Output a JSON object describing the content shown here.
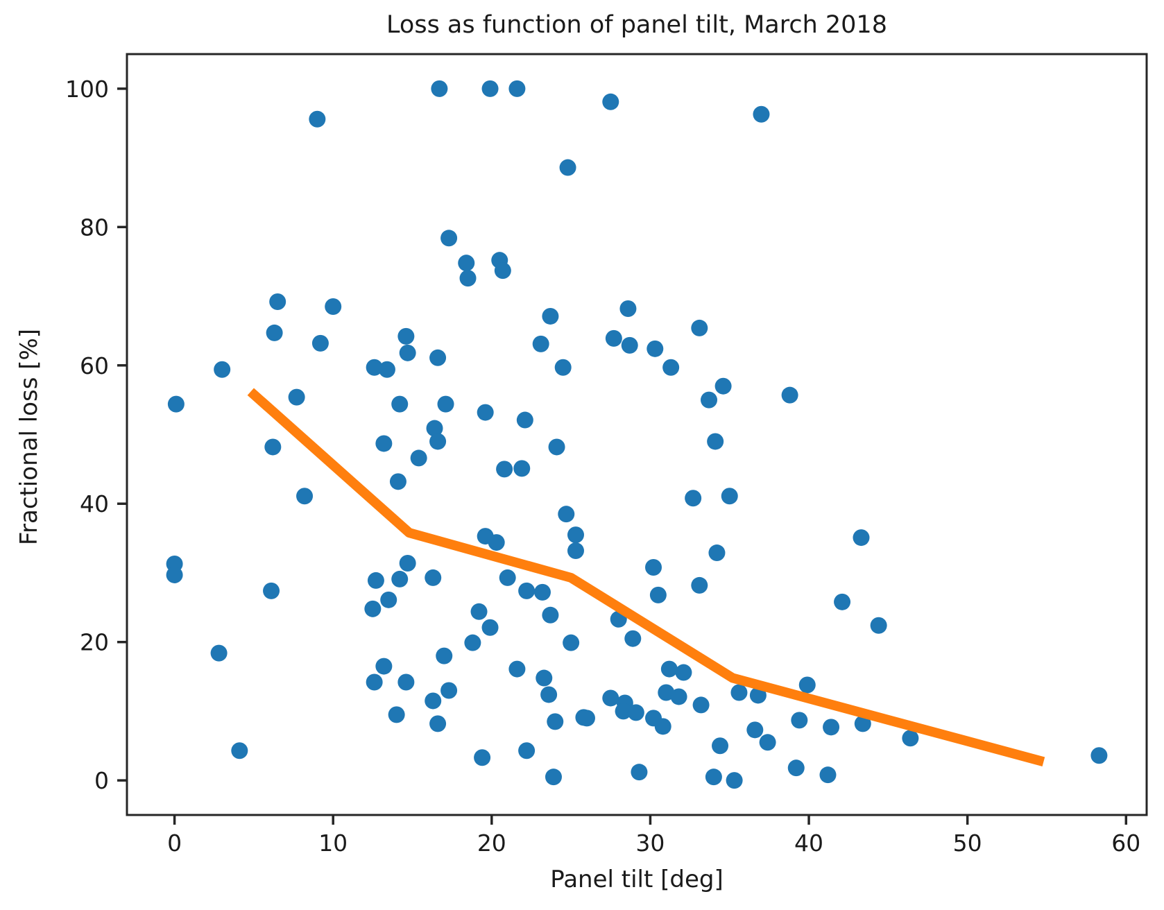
{
  "chart_data": {
    "type": "scatter",
    "title": "Loss as function of panel tilt, March 2018",
    "xlabel": "Panel tilt [deg]",
    "ylabel": "Fractional loss [%]",
    "xlim": [
      -3.0,
      61.3
    ],
    "ylim": [
      -5,
      105
    ],
    "xticks": [
      0,
      10,
      20,
      30,
      40,
      50,
      60
    ],
    "yticks": [
      0,
      20,
      40,
      60,
      80,
      100
    ],
    "grid": false,
    "legend": "none",
    "background_color": "#ffffff",
    "spine_color": "#262626",
    "series": [
      {
        "name": "loss-samples",
        "type": "scatter",
        "color": "#1f77b4",
        "marker_radius": 12,
        "points": [
          [
            16.7,
            100
          ],
          [
            19.9,
            100
          ],
          [
            21.6,
            100
          ],
          [
            27.5,
            98.1
          ],
          [
            37.0,
            96.3
          ],
          [
            9.0,
            95.6
          ],
          [
            24.8,
            88.6
          ],
          [
            17.3,
            78.4
          ],
          [
            18.4,
            74.8
          ],
          [
            18.5,
            72.6
          ],
          [
            20.5,
            75.2
          ],
          [
            20.7,
            73.7
          ],
          [
            6.5,
            69.2
          ],
          [
            10.0,
            68.5
          ],
          [
            28.6,
            68.2
          ],
          [
            23.7,
            67.1
          ],
          [
            33.1,
            65.4
          ],
          [
            6.3,
            64.7
          ],
          [
            14.6,
            64.2
          ],
          [
            27.7,
            63.9
          ],
          [
            28.7,
            62.9
          ],
          [
            9.2,
            63.2
          ],
          [
            23.1,
            63.1
          ],
          [
            30.3,
            62.4
          ],
          [
            14.7,
            61.8
          ],
          [
            16.6,
            61.1
          ],
          [
            12.6,
            59.7
          ],
          [
            13.4,
            59.4
          ],
          [
            3.0,
            59.4
          ],
          [
            24.5,
            59.7
          ],
          [
            31.3,
            59.7
          ],
          [
            0.1,
            54.4
          ],
          [
            7.7,
            55.4
          ],
          [
            14.2,
            54.4
          ],
          [
            17.1,
            54.4
          ],
          [
            34.6,
            57.0
          ],
          [
            33.7,
            55.0
          ],
          [
            38.8,
            55.7
          ],
          [
            19.6,
            53.2
          ],
          [
            22.1,
            52.1
          ],
          [
            16.4,
            50.9
          ],
          [
            6.2,
            48.2
          ],
          [
            13.2,
            48.7
          ],
          [
            16.6,
            49.0
          ],
          [
            24.1,
            48.2
          ],
          [
            34.1,
            49.0
          ],
          [
            15.4,
            46.6
          ],
          [
            20.8,
            45.0
          ],
          [
            21.9,
            45.1
          ],
          [
            14.1,
            43.2
          ],
          [
            8.2,
            41.1
          ],
          [
            32.7,
            40.8
          ],
          [
            35.0,
            41.1
          ],
          [
            24.7,
            38.5
          ],
          [
            25.3,
            35.5
          ],
          [
            25.3,
            33.2
          ],
          [
            19.6,
            35.3
          ],
          [
            20.3,
            34.4
          ],
          [
            43.3,
            35.1
          ],
          [
            34.2,
            32.9
          ],
          [
            14.7,
            31.4
          ],
          [
            0.0,
            31.3
          ],
          [
            30.2,
            30.8
          ],
          [
            0.0,
            29.7
          ],
          [
            12.7,
            28.9
          ],
          [
            14.2,
            29.1
          ],
          [
            16.3,
            29.3
          ],
          [
            21.0,
            29.3
          ],
          [
            22.2,
            27.4
          ],
          [
            23.2,
            27.2
          ],
          [
            33.1,
            28.2
          ],
          [
            6.1,
            27.4
          ],
          [
            13.5,
            26.1
          ],
          [
            30.5,
            26.8
          ],
          [
            42.1,
            25.8
          ],
          [
            12.5,
            24.8
          ],
          [
            19.2,
            24.4
          ],
          [
            23.7,
            23.9
          ],
          [
            28.0,
            23.3
          ],
          [
            44.4,
            22.4
          ],
          [
            19.9,
            22.1
          ],
          [
            28.9,
            20.5
          ],
          [
            25.0,
            19.9
          ],
          [
            18.8,
            19.9
          ],
          [
            2.8,
            18.4
          ],
          [
            17.0,
            18.0
          ],
          [
            13.2,
            16.5
          ],
          [
            31.2,
            16.1
          ],
          [
            21.6,
            16.1
          ],
          [
            32.1,
            15.6
          ],
          [
            23.3,
            14.8
          ],
          [
            12.6,
            14.2
          ],
          [
            14.6,
            14.2
          ],
          [
            17.3,
            13.0
          ],
          [
            31.0,
            12.7
          ],
          [
            31.8,
            12.1
          ],
          [
            23.6,
            12.4
          ],
          [
            33.2,
            10.9
          ],
          [
            35.6,
            12.7
          ],
          [
            36.8,
            12.3
          ],
          [
            39.9,
            13.8
          ],
          [
            16.3,
            11.5
          ],
          [
            25.8,
            9.1
          ],
          [
            27.5,
            11.9
          ],
          [
            28.4,
            11.2
          ],
          [
            28.3,
            10.0
          ],
          [
            29.1,
            9.8
          ],
          [
            30.2,
            9.0
          ],
          [
            30.8,
            7.8
          ],
          [
            14.0,
            9.5
          ],
          [
            16.6,
            8.2
          ],
          [
            24.0,
            8.5
          ],
          [
            26.0,
            9.0
          ],
          [
            36.6,
            7.3
          ],
          [
            39.4,
            8.7
          ],
          [
            41.4,
            7.7
          ],
          [
            43.4,
            8.2
          ],
          [
            46.4,
            6.1
          ],
          [
            4.1,
            4.3
          ],
          [
            19.4,
            3.3
          ],
          [
            22.2,
            4.3
          ],
          [
            23.9,
            0.5
          ],
          [
            29.3,
            1.2
          ],
          [
            34.0,
            0.5
          ],
          [
            35.3,
            0.0
          ],
          [
            34.4,
            5.0
          ],
          [
            37.4,
            5.5
          ],
          [
            39.2,
            1.8
          ],
          [
            41.2,
            0.8
          ],
          [
            58.3,
            3.6
          ]
        ]
      },
      {
        "name": "binned-trend",
        "type": "line",
        "color": "#ff7f0e",
        "line_width": 14,
        "points": [
          [
            4.8,
            56.2
          ],
          [
            14.8,
            35.8
          ],
          [
            25.0,
            29.3
          ],
          [
            35.2,
            14.8
          ],
          [
            54.8,
            2.7
          ]
        ]
      }
    ]
  }
}
